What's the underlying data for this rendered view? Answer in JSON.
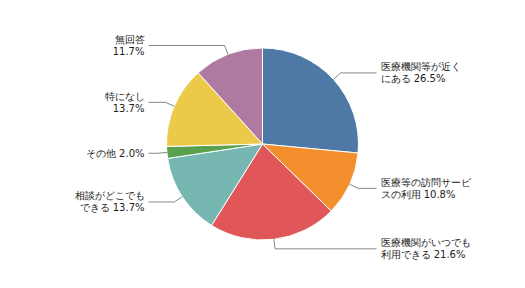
{
  "chart_data": {
    "type": "pie",
    "categories": [
      "医療機関等が近く\nにある 26.5%",
      "医療等の訪問サービ\nスの利用 10.8%",
      "医療機関がいつでも\n利用できる 21.6%",
      "相談がどこでも\nできる 13.7%",
      "その他 2.0%",
      "特になし\n13.7%",
      "無回答\n11.7%"
    ],
    "values": [
      26.5,
      10.8,
      21.6,
      13.7,
      2.0,
      13.7,
      11.7
    ]
  }
}
